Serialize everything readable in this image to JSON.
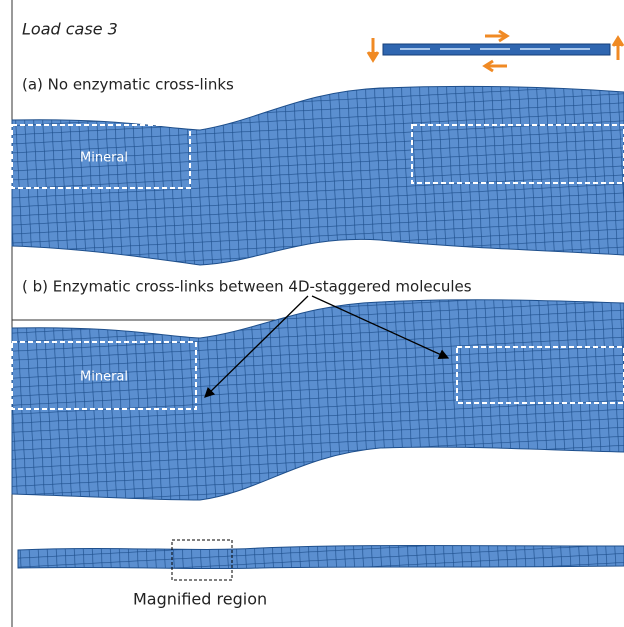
{
  "figure": {
    "load_case": "Load case 3",
    "panel_a": {
      "label": "(a) No enzymatic cross-links",
      "mineral_label": "Mineral"
    },
    "panel_b": {
      "label": "( b) Enzymatic cross-links between 4D-staggered molecules",
      "mineral_label": "Mineral"
    },
    "magnified_label": "Magnified region"
  }
}
